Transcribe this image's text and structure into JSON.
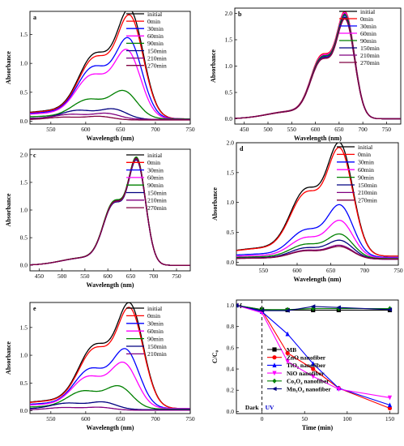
{
  "chart_data": [
    {
      "type": "line",
      "panel_label": "a",
      "xlabel": "Wavelength (nm)",
      "ylabel": "Absorbance",
      "xlim": [
        520,
        750
      ],
      "ylim": [
        -0.05,
        1.9
      ],
      "xticks": [
        550,
        600,
        650,
        700,
        750
      ],
      "yticks": [
        0.0,
        0.5,
        1.0,
        1.5
      ],
      "legend_position": "top-right",
      "series": [
        {
          "name": "initial",
          "color": "#000000",
          "peak": 1.8,
          "shoulder": 1.12,
          "base": 0.04,
          "peak_x": 664
        },
        {
          "name": "0min",
          "color": "#ff0000",
          "peak": 1.7,
          "shoulder": 1.06,
          "base": 0.04,
          "peak_x": 664
        },
        {
          "name": "30min",
          "color": "#0000ff",
          "peak": 1.32,
          "shoulder": 0.9,
          "base": 0.04,
          "peak_x": 662
        },
        {
          "name": "60min",
          "color": "#ff00ff",
          "peak": 1.13,
          "shoulder": 0.76,
          "base": 0.04,
          "peak_x": 660
        },
        {
          "name": "90min",
          "color": "#008000",
          "peak": 0.46,
          "shoulder": 0.34,
          "base": 0.04,
          "peak_x": 655
        },
        {
          "name": "150min",
          "color": "#000080",
          "peak": 0.17,
          "shoulder": 0.16,
          "base": 0.03,
          "peak_x": 640
        },
        {
          "name": "210min",
          "color": "#800080",
          "peak": 0.1,
          "shoulder": 0.09,
          "base": 0.03,
          "peak_x": 630
        },
        {
          "name": "270min",
          "color": "#800040",
          "peak": 0.06,
          "shoulder": 0.05,
          "base": 0.02,
          "peak_x": 620
        }
      ]
    },
    {
      "type": "line",
      "panel_label": "b",
      "xlabel": "Wavelength (nm)",
      "ylabel": "Absorbance",
      "xlim": [
        430,
        780
      ],
      "ylim": [
        -0.1,
        2.1
      ],
      "xticks": [
        450,
        500,
        550,
        600,
        650,
        700,
        750
      ],
      "yticks": [
        0.0,
        0.5,
        1.0,
        1.5,
        2.0
      ],
      "legend_position": "top-right",
      "series": [
        {
          "name": "initial",
          "color": "#000000",
          "peak": 1.88,
          "shoulder": 1.17,
          "base": 0.0,
          "peak_x": 664
        },
        {
          "name": "0min",
          "color": "#ff0000",
          "peak": 1.92,
          "shoulder": 1.2,
          "base": 0.0,
          "peak_x": 664
        },
        {
          "name": "30min",
          "color": "#0000ff",
          "peak": 1.85,
          "shoulder": 1.15,
          "base": 0.0,
          "peak_x": 664
        },
        {
          "name": "60min",
          "color": "#ff00ff",
          "peak": 1.9,
          "shoulder": 1.18,
          "base": 0.0,
          "peak_x": 664
        },
        {
          "name": "90min",
          "color": "#008000",
          "peak": 1.87,
          "shoulder": 1.16,
          "base": 0.0,
          "peak_x": 664
        },
        {
          "name": "150min",
          "color": "#000080",
          "peak": 1.82,
          "shoulder": 1.13,
          "base": 0.0,
          "peak_x": 664
        },
        {
          "name": "210min",
          "color": "#800080",
          "peak": 1.8,
          "shoulder": 1.12,
          "base": 0.0,
          "peak_x": 664
        },
        {
          "name": "270min",
          "color": "#800040",
          "peak": 1.79,
          "shoulder": 1.11,
          "base": 0.0,
          "peak_x": 664
        }
      ]
    },
    {
      "type": "line",
      "panel_label": "c",
      "xlabel": "Wavelength (nm)",
      "ylabel": "Absorbance",
      "xlim": [
        430,
        780
      ],
      "ylim": [
        -0.1,
        2.1
      ],
      "xticks": [
        450,
        500,
        550,
        600,
        650,
        700,
        750
      ],
      "yticks": [
        0.0,
        0.5,
        1.0,
        1.5,
        2.0
      ],
      "legend_position": "top-right",
      "series": [
        {
          "name": "initial",
          "color": "#000000",
          "peak": 1.84,
          "shoulder": 1.14,
          "base": 0.0,
          "peak_x": 664
        },
        {
          "name": "0min",
          "color": "#ff0000",
          "peak": 1.82,
          "shoulder": 1.13,
          "base": 0.0,
          "peak_x": 664
        },
        {
          "name": "30min",
          "color": "#0000ff",
          "peak": 1.83,
          "shoulder": 1.13,
          "base": 0.0,
          "peak_x": 664
        },
        {
          "name": "60min",
          "color": "#ff00ff",
          "peak": 1.81,
          "shoulder": 1.12,
          "base": 0.0,
          "peak_x": 664
        },
        {
          "name": "90min",
          "color": "#008000",
          "peak": 1.85,
          "shoulder": 1.15,
          "base": 0.0,
          "peak_x": 664
        },
        {
          "name": "150min",
          "color": "#000080",
          "peak": 1.8,
          "shoulder": 1.11,
          "base": 0.0,
          "peak_x": 664
        },
        {
          "name": "210min",
          "color": "#800080",
          "peak": 1.82,
          "shoulder": 1.12,
          "base": 0.0,
          "peak_x": 664
        },
        {
          "name": "270min",
          "color": "#800040",
          "peak": 1.83,
          "shoulder": 1.13,
          "base": 0.0,
          "peak_x": 664
        }
      ]
    },
    {
      "type": "line",
      "panel_label": "d",
      "xlabel": "Wavelength (nm)",
      "ylabel": "Absorbance",
      "xlim": [
        510,
        750
      ],
      "ylim": [
        -0.05,
        2.0
      ],
      "xticks": [
        550,
        600,
        650,
        700,
        750
      ],
      "yticks": [
        0.0,
        0.5,
        1.0,
        1.5,
        2.0
      ],
      "legend_position": "top-right",
      "series": [
        {
          "name": "initial",
          "color": "#000000",
          "peak": 1.8,
          "shoulder": 1.12,
          "base": 0.1,
          "peak_x": 664
        },
        {
          "name": "0min",
          "color": "#ff0000",
          "peak": 1.72,
          "shoulder": 1.06,
          "base": 0.1,
          "peak_x": 664
        },
        {
          "name": "30min",
          "color": "#0000ff",
          "peak": 0.84,
          "shoulder": 0.46,
          "base": 0.08,
          "peak_x": 664
        },
        {
          "name": "60min",
          "color": "#ff00ff",
          "peak": 0.6,
          "shoulder": 0.34,
          "base": 0.07,
          "peak_x": 664
        },
        {
          "name": "90min",
          "color": "#008000",
          "peak": 0.39,
          "shoulder": 0.24,
          "base": 0.06,
          "peak_x": 664
        },
        {
          "name": "150min",
          "color": "#000080",
          "peak": 0.3,
          "shoulder": 0.19,
          "base": 0.05,
          "peak_x": 664
        },
        {
          "name": "210min",
          "color": "#800080",
          "peak": 0.22,
          "shoulder": 0.15,
          "base": 0.05,
          "peak_x": 664
        },
        {
          "name": "270min",
          "color": "#800040",
          "peak": 0.2,
          "shoulder": 0.14,
          "base": 0.05,
          "peak_x": 664
        }
      ]
    },
    {
      "type": "line",
      "panel_label": "e",
      "xlabel": "Wavelength (nm)",
      "ylabel": "Absorbance",
      "xlim": [
        520,
        750
      ],
      "ylim": [
        -0.05,
        1.95
      ],
      "xticks": [
        550,
        600,
        650,
        700,
        750
      ],
      "yticks": [
        0.0,
        0.5,
        1.0,
        1.5
      ],
      "legend_position": "top-right",
      "series": [
        {
          "name": "initial",
          "color": "#000000",
          "peak": 1.8,
          "shoulder": 1.14,
          "base": 0.04,
          "peak_x": 664
        },
        {
          "name": "0min",
          "color": "#ff0000",
          "peak": 1.72,
          "shoulder": 1.08,
          "base": 0.04,
          "peak_x": 664
        },
        {
          "name": "30min",
          "color": "#0000ff",
          "peak": 1.01,
          "shoulder": 0.72,
          "base": 0.04,
          "peak_x": 658
        },
        {
          "name": "60min",
          "color": "#ff00ff",
          "peak": 0.78,
          "shoulder": 0.58,
          "base": 0.04,
          "peak_x": 655
        },
        {
          "name": "90min",
          "color": "#008000",
          "peak": 0.39,
          "shoulder": 0.33,
          "base": 0.03,
          "peak_x": 648
        },
        {
          "name": "150min",
          "color": "#000080",
          "peak": 0.13,
          "shoulder": 0.12,
          "base": 0.02,
          "peak_x": 625
        },
        {
          "name": "210min",
          "color": "#800080",
          "peak": 0.05,
          "shoulder": 0.05,
          "base": 0.01,
          "peak_x": 620
        }
      ]
    },
    {
      "type": "line",
      "panel_label": "f",
      "xlabel": "Time (min)",
      "ylabel": "C/C₀",
      "xlim": [
        -30,
        160
      ],
      "ylim": [
        -0.02,
        1.05
      ],
      "xticks": [
        0,
        50,
        100,
        150
      ],
      "yticks": [
        0.0,
        0.2,
        0.4,
        0.6,
        0.8,
        1.0
      ],
      "legend_position": "right",
      "annotations": {
        "dark": "Dark",
        "uv": "UV"
      },
      "series": [
        {
          "name": "MB",
          "color": "#000000",
          "marker": "square",
          "x": [
            -30,
            0,
            30,
            60,
            90,
            150
          ],
          "y": [
            1.0,
            0.96,
            0.955,
            0.955,
            0.955,
            0.955
          ]
        },
        {
          "name": "ZnO nanofiber",
          "color": "#ff0000",
          "marker": "circle",
          "x": [
            -30,
            0,
            30,
            60,
            90,
            150
          ],
          "y": [
            1.0,
            0.95,
            0.55,
            0.4,
            0.22,
            0.03
          ]
        },
        {
          "name": "TiO₂ nanofiber",
          "color": "#0000ff",
          "marker": "triangle-up",
          "x": [
            -30,
            0,
            30,
            60,
            90,
            150
          ],
          "y": [
            1.0,
            0.94,
            0.73,
            0.45,
            0.22,
            0.06
          ]
        },
        {
          "name": "NiO nanofiber",
          "color": "#ff00ff",
          "marker": "triangle-down",
          "x": [
            -30,
            0,
            30,
            60,
            90,
            150
          ],
          "y": [
            1.0,
            0.93,
            0.47,
            0.33,
            0.21,
            0.13
          ]
        },
        {
          "name": "Co₃O₄ nanofiber",
          "color": "#008000",
          "marker": "diamond",
          "x": [
            -30,
            0,
            30,
            60,
            90,
            150
          ],
          "y": [
            1.0,
            0.96,
            0.96,
            0.97,
            0.97,
            0.97
          ]
        },
        {
          "name": "Mn₃O₄ nanofiber",
          "color": "#000080",
          "marker": "left-triangle",
          "x": [
            -30,
            0,
            30,
            60,
            90,
            150
          ],
          "y": [
            1.0,
            0.95,
            0.95,
            0.99,
            0.98,
            0.96
          ]
        }
      ]
    }
  ]
}
